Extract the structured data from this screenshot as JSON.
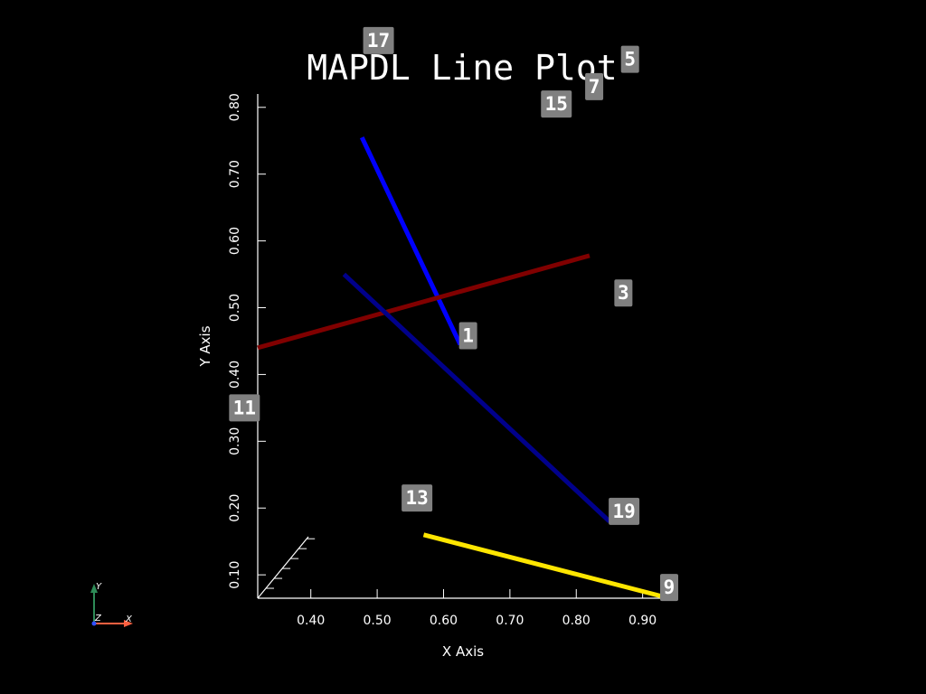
{
  "chart_data": {
    "type": "line",
    "title": "MAPDL Line Plot",
    "xlabel": "X Axis",
    "ylabel": "Y Axis",
    "xlim": [
      0.32,
      0.94
    ],
    "ylim": [
      0.065,
      0.82
    ],
    "x_ticks": [
      "0.40",
      "0.50",
      "0.60",
      "0.70",
      "0.80",
      "0.90"
    ],
    "y_ticks": [
      "0.10",
      "0.20",
      "0.30",
      "0.40",
      "0.50",
      "0.60",
      "0.70",
      "0.80"
    ],
    "grid": false,
    "series": [
      {
        "color": "#0000ff",
        "x": [
          0.477,
          0.625
        ],
        "y": [
          0.755,
          0.445
        ]
      },
      {
        "color": "#800000",
        "x": [
          0.32,
          0.82
        ],
        "y": [
          0.44,
          0.578
        ]
      },
      {
        "color": "#00008b",
        "x": [
          0.45,
          0.85
        ],
        "y": [
          0.55,
          0.18
        ]
      },
      {
        "color": "#ffe600",
        "x": [
          0.57,
          0.94
        ],
        "y": [
          0.16,
          0.065
        ]
      }
    ],
    "annotations": [
      {
        "text": "1",
        "x": 0.637,
        "y": 0.458
      },
      {
        "text": "3",
        "x": 0.871,
        "y": 0.522
      },
      {
        "text": "5",
        "x": 0.881,
        "y": 0.872
      },
      {
        "text": "7",
        "x": 0.827,
        "y": 0.831
      },
      {
        "text": "9",
        "x": 0.94,
        "y": 0.081
      },
      {
        "text": "11",
        "x": 0.3,
        "y": 0.35
      },
      {
        "text": "13",
        "x": 0.56,
        "y": 0.215
      },
      {
        "text": "15",
        "x": 0.77,
        "y": 0.805
      },
      {
        "text": "17",
        "x": 0.502,
        "y": 0.9
      },
      {
        "text": "19",
        "x": 0.872,
        "y": 0.195
      }
    ]
  },
  "triad": {
    "y_label": "Y",
    "z_label": "Z",
    "x_label": "X"
  },
  "colors": {
    "background": "#000000",
    "axes": "#ffffff",
    "label_box": "#808080",
    "triad_x": "#ff6040",
    "triad_y": "#2e8b57",
    "triad_z": "#3050ff"
  }
}
